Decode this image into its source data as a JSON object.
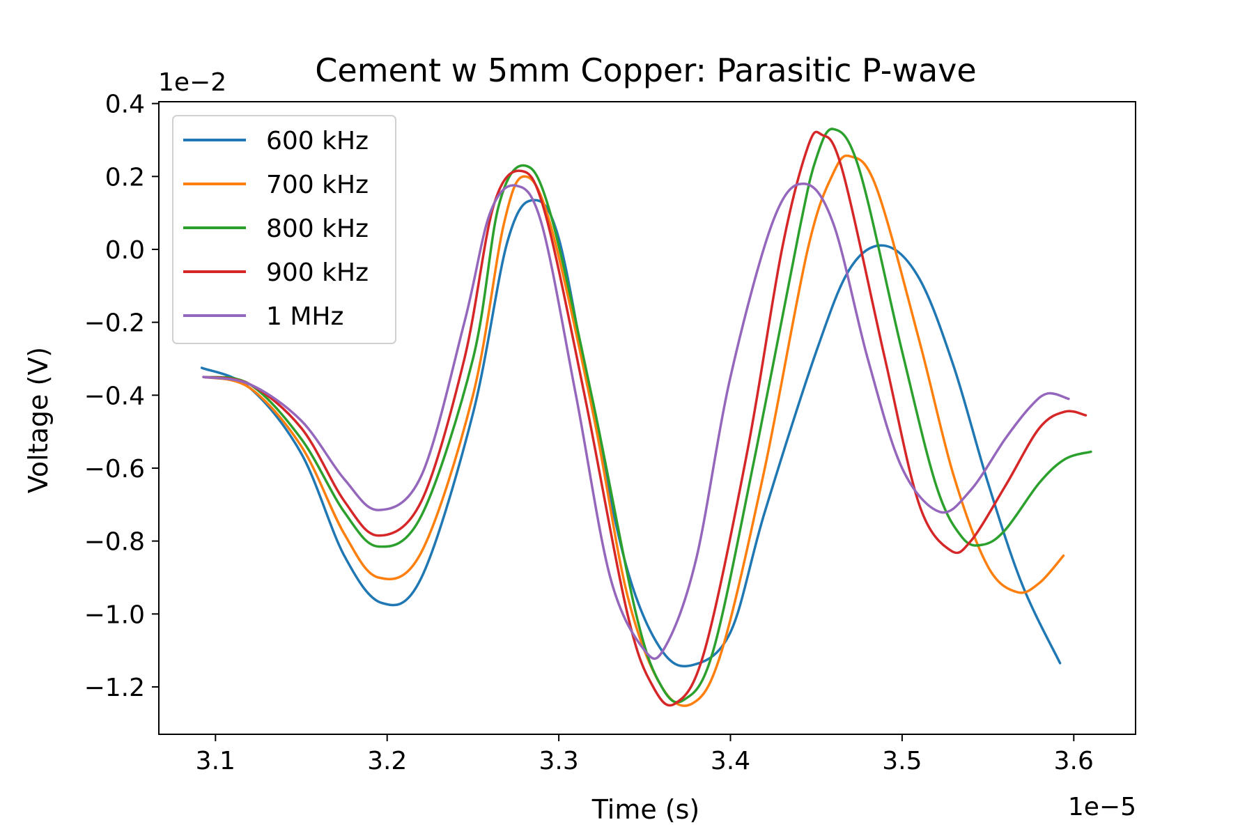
{
  "chart_data": {
    "type": "line",
    "title": "Cement w 5mm Copper: Parasitic P-wave",
    "xlabel": "Time (s)",
    "ylabel": "Voltage (V)",
    "x_offset_label": "1e−5",
    "y_offset_label": "1e−2",
    "x_unit_scale": "1e-5 s",
    "y_unit_scale": "1e-2 V",
    "xlim": [
      3.067,
      3.636
    ],
    "ylim": [
      -1.33,
      0.405
    ],
    "xticks": [
      3.1,
      3.2,
      3.3,
      3.4,
      3.5,
      3.6
    ],
    "xtick_labels": [
      "3.1",
      "3.2",
      "3.3",
      "3.4",
      "3.5",
      "3.6"
    ],
    "yticks": [
      0.4,
      0.2,
      0.0,
      -0.2,
      -0.4,
      -0.6,
      -0.8,
      -1.0,
      -1.2
    ],
    "ytick_labels": [
      "0.4",
      "0.2",
      "0.0",
      "−0.2",
      "−0.4",
      "−0.6",
      "−0.8",
      "−1.0",
      "−1.2"
    ],
    "grid": false,
    "legend_position": "top-left",
    "series": [
      {
        "name": "600 kHz",
        "color": "#1f77b4",
        "points": [
          [
            3.092,
            -0.325
          ],
          [
            3.12,
            -0.38
          ],
          [
            3.15,
            -0.56
          ],
          [
            3.175,
            -0.84
          ],
          [
            3.197,
            -0.97
          ],
          [
            3.22,
            -0.9
          ],
          [
            3.25,
            -0.45
          ],
          [
            3.27,
            0.02
          ],
          [
            3.285,
            0.135
          ],
          [
            3.3,
            0.03
          ],
          [
            3.32,
            -0.45
          ],
          [
            3.34,
            -0.88
          ],
          [
            3.36,
            -1.1
          ],
          [
            3.378,
            -1.14
          ],
          [
            3.4,
            -1.05
          ],
          [
            3.42,
            -0.72
          ],
          [
            3.45,
            -0.28
          ],
          [
            3.47,
            -0.05
          ],
          [
            3.49,
            0.01
          ],
          [
            3.51,
            -0.08
          ],
          [
            3.53,
            -0.32
          ],
          [
            3.55,
            -0.64
          ],
          [
            3.57,
            -0.92
          ],
          [
            3.592,
            -1.135
          ]
        ]
      },
      {
        "name": "700 kHz",
        "color": "#ff7f0e",
        "points": [
          [
            3.093,
            -0.35
          ],
          [
            3.12,
            -0.38
          ],
          [
            3.15,
            -0.54
          ],
          [
            3.175,
            -0.78
          ],
          [
            3.195,
            -0.9
          ],
          [
            3.22,
            -0.83
          ],
          [
            3.25,
            -0.4
          ],
          [
            3.268,
            0.07
          ],
          [
            3.28,
            0.2
          ],
          [
            3.295,
            0.07
          ],
          [
            3.32,
            -0.45
          ],
          [
            3.34,
            -0.95
          ],
          [
            3.36,
            -1.2
          ],
          [
            3.378,
            -1.245
          ],
          [
            3.395,
            -1.1
          ],
          [
            3.42,
            -0.6
          ],
          [
            3.445,
            0.0
          ],
          [
            3.46,
            0.21
          ],
          [
            3.47,
            0.255
          ],
          [
            3.485,
            0.17
          ],
          [
            3.51,
            -0.25
          ],
          [
            3.53,
            -0.62
          ],
          [
            3.55,
            -0.87
          ],
          [
            3.567,
            -0.94
          ],
          [
            3.58,
            -0.915
          ],
          [
            3.594,
            -0.84
          ]
        ]
      },
      {
        "name": "800 kHz",
        "color": "#2ca02c",
        "points": [
          [
            3.093,
            -0.35
          ],
          [
            3.12,
            -0.37
          ],
          [
            3.15,
            -0.52
          ],
          [
            3.175,
            -0.72
          ],
          [
            3.195,
            -0.815
          ],
          [
            3.22,
            -0.73
          ],
          [
            3.25,
            -0.3
          ],
          [
            3.265,
            0.12
          ],
          [
            3.28,
            0.23
          ],
          [
            3.295,
            0.1
          ],
          [
            3.32,
            -0.42
          ],
          [
            3.345,
            -1.0
          ],
          [
            3.36,
            -1.2
          ],
          [
            3.373,
            -1.235
          ],
          [
            3.39,
            -1.1
          ],
          [
            3.415,
            -0.55
          ],
          [
            3.44,
            0.05
          ],
          [
            3.45,
            0.25
          ],
          [
            3.46,
            0.33
          ],
          [
            3.475,
            0.22
          ],
          [
            3.5,
            -0.28
          ],
          [
            3.52,
            -0.65
          ],
          [
            3.535,
            -0.79
          ],
          [
            3.547,
            -0.81
          ],
          [
            3.56,
            -0.77
          ],
          [
            3.58,
            -0.64
          ],
          [
            3.595,
            -0.575
          ],
          [
            3.61,
            -0.555
          ]
        ]
      },
      {
        "name": "900 kHz",
        "color": "#d62728",
        "points": [
          [
            3.093,
            -0.35
          ],
          [
            3.12,
            -0.37
          ],
          [
            3.15,
            -0.49
          ],
          [
            3.175,
            -0.69
          ],
          [
            3.195,
            -0.785
          ],
          [
            3.22,
            -0.69
          ],
          [
            3.245,
            -0.3
          ],
          [
            3.262,
            0.12
          ],
          [
            3.278,
            0.215
          ],
          [
            3.292,
            0.1
          ],
          [
            3.315,
            -0.4
          ],
          [
            3.34,
            -1.0
          ],
          [
            3.355,
            -1.2
          ],
          [
            3.368,
            -1.245
          ],
          [
            3.385,
            -1.1
          ],
          [
            3.41,
            -0.55
          ],
          [
            3.43,
            0.0
          ],
          [
            3.445,
            0.28
          ],
          [
            3.453,
            0.315
          ],
          [
            3.465,
            0.22
          ],
          [
            3.49,
            -0.3
          ],
          [
            3.51,
            -0.7
          ],
          [
            3.528,
            -0.825
          ],
          [
            3.54,
            -0.8
          ],
          [
            3.56,
            -0.65
          ],
          [
            3.58,
            -0.49
          ],
          [
            3.595,
            -0.445
          ],
          [
            3.607,
            -0.455
          ]
        ]
      },
      {
        "name": "1 MHz",
        "color": "#9467bd",
        "points": [
          [
            3.093,
            -0.35
          ],
          [
            3.12,
            -0.37
          ],
          [
            3.15,
            -0.47
          ],
          [
            3.175,
            -0.63
          ],
          [
            3.195,
            -0.715
          ],
          [
            3.22,
            -0.62
          ],
          [
            3.245,
            -0.2
          ],
          [
            3.26,
            0.1
          ],
          [
            3.275,
            0.175
          ],
          [
            3.29,
            0.07
          ],
          [
            3.31,
            -0.4
          ],
          [
            3.33,
            -0.9
          ],
          [
            3.35,
            -1.1
          ],
          [
            3.362,
            -1.09
          ],
          [
            3.38,
            -0.85
          ],
          [
            3.4,
            -0.35
          ],
          [
            3.425,
            0.08
          ],
          [
            3.443,
            0.18
          ],
          [
            3.46,
            0.07
          ],
          [
            3.48,
            -0.3
          ],
          [
            3.5,
            -0.6
          ],
          [
            3.522,
            -0.72
          ],
          [
            3.54,
            -0.66
          ],
          [
            3.56,
            -0.52
          ],
          [
            3.575,
            -0.43
          ],
          [
            3.585,
            -0.395
          ],
          [
            3.597,
            -0.41
          ]
        ]
      }
    ]
  }
}
